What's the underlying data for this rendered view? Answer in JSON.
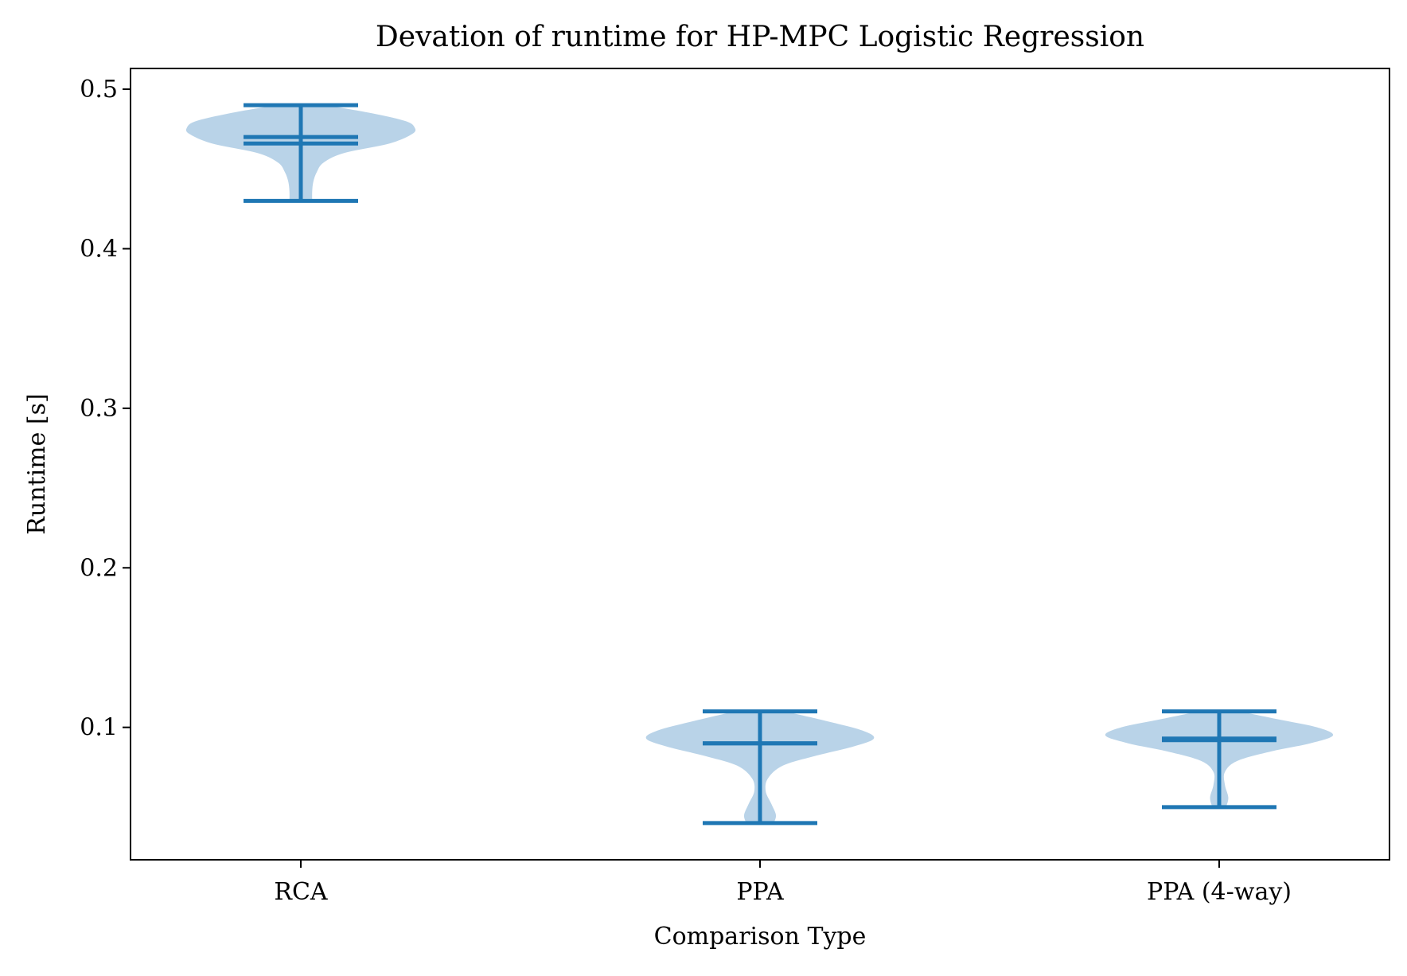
{
  "chart_data": {
    "type": "violin",
    "title": "Devation of runtime for HP-MPC Logistic Regression",
    "xlabel": "Comparison Type",
    "ylabel": "Runtime [s]",
    "ylim": [
      0.017,
      0.513
    ],
    "yticks": [
      0.1,
      0.2,
      0.3,
      0.4,
      0.5
    ],
    "ytick_labels": [
      "0.1",
      "0.2",
      "0.3",
      "0.4",
      "0.5"
    ],
    "categories": [
      "RCA",
      "PPA",
      "PPA (4-way)"
    ],
    "grid": false,
    "violins": [
      {
        "category": "RCA",
        "min": 0.43,
        "max": 0.49,
        "mean": 0.47,
        "median": 0.466,
        "density": [
          [
            0.43,
            0.1
          ],
          [
            0.436,
            0.1
          ],
          [
            0.442,
            0.11
          ],
          [
            0.448,
            0.14
          ],
          [
            0.454,
            0.2
          ],
          [
            0.46,
            0.38
          ],
          [
            0.466,
            0.78
          ],
          [
            0.472,
            0.98
          ],
          [
            0.476,
            1.0
          ],
          [
            0.48,
            0.92
          ],
          [
            0.485,
            0.62
          ],
          [
            0.49,
            0.22
          ]
        ]
      },
      {
        "category": "PPA",
        "min": 0.04,
        "max": 0.11,
        "mean": 0.09,
        "median": 0.09,
        "density": [
          [
            0.04,
            0.12
          ],
          [
            0.045,
            0.14
          ],
          [
            0.052,
            0.1
          ],
          [
            0.06,
            0.05
          ],
          [
            0.068,
            0.07
          ],
          [
            0.076,
            0.2
          ],
          [
            0.082,
            0.48
          ],
          [
            0.088,
            0.82
          ],
          [
            0.093,
            1.0
          ],
          [
            0.098,
            0.9
          ],
          [
            0.104,
            0.58
          ],
          [
            0.11,
            0.22
          ]
        ]
      },
      {
        "category": "PPA (4-way)",
        "min": 0.05,
        "max": 0.11,
        "mean": 0.092,
        "median": 0.093,
        "density": [
          [
            0.05,
            0.06
          ],
          [
            0.056,
            0.08
          ],
          [
            0.064,
            0.05
          ],
          [
            0.072,
            0.05
          ],
          [
            0.079,
            0.16
          ],
          [
            0.085,
            0.46
          ],
          [
            0.09,
            0.8
          ],
          [
            0.095,
            1.0
          ],
          [
            0.1,
            0.86
          ],
          [
            0.105,
            0.52
          ],
          [
            0.11,
            0.18
          ]
        ]
      }
    ],
    "colors": {
      "body": "#b9d3e8",
      "lines": "#1f77b4",
      "axes": "#000000"
    }
  }
}
